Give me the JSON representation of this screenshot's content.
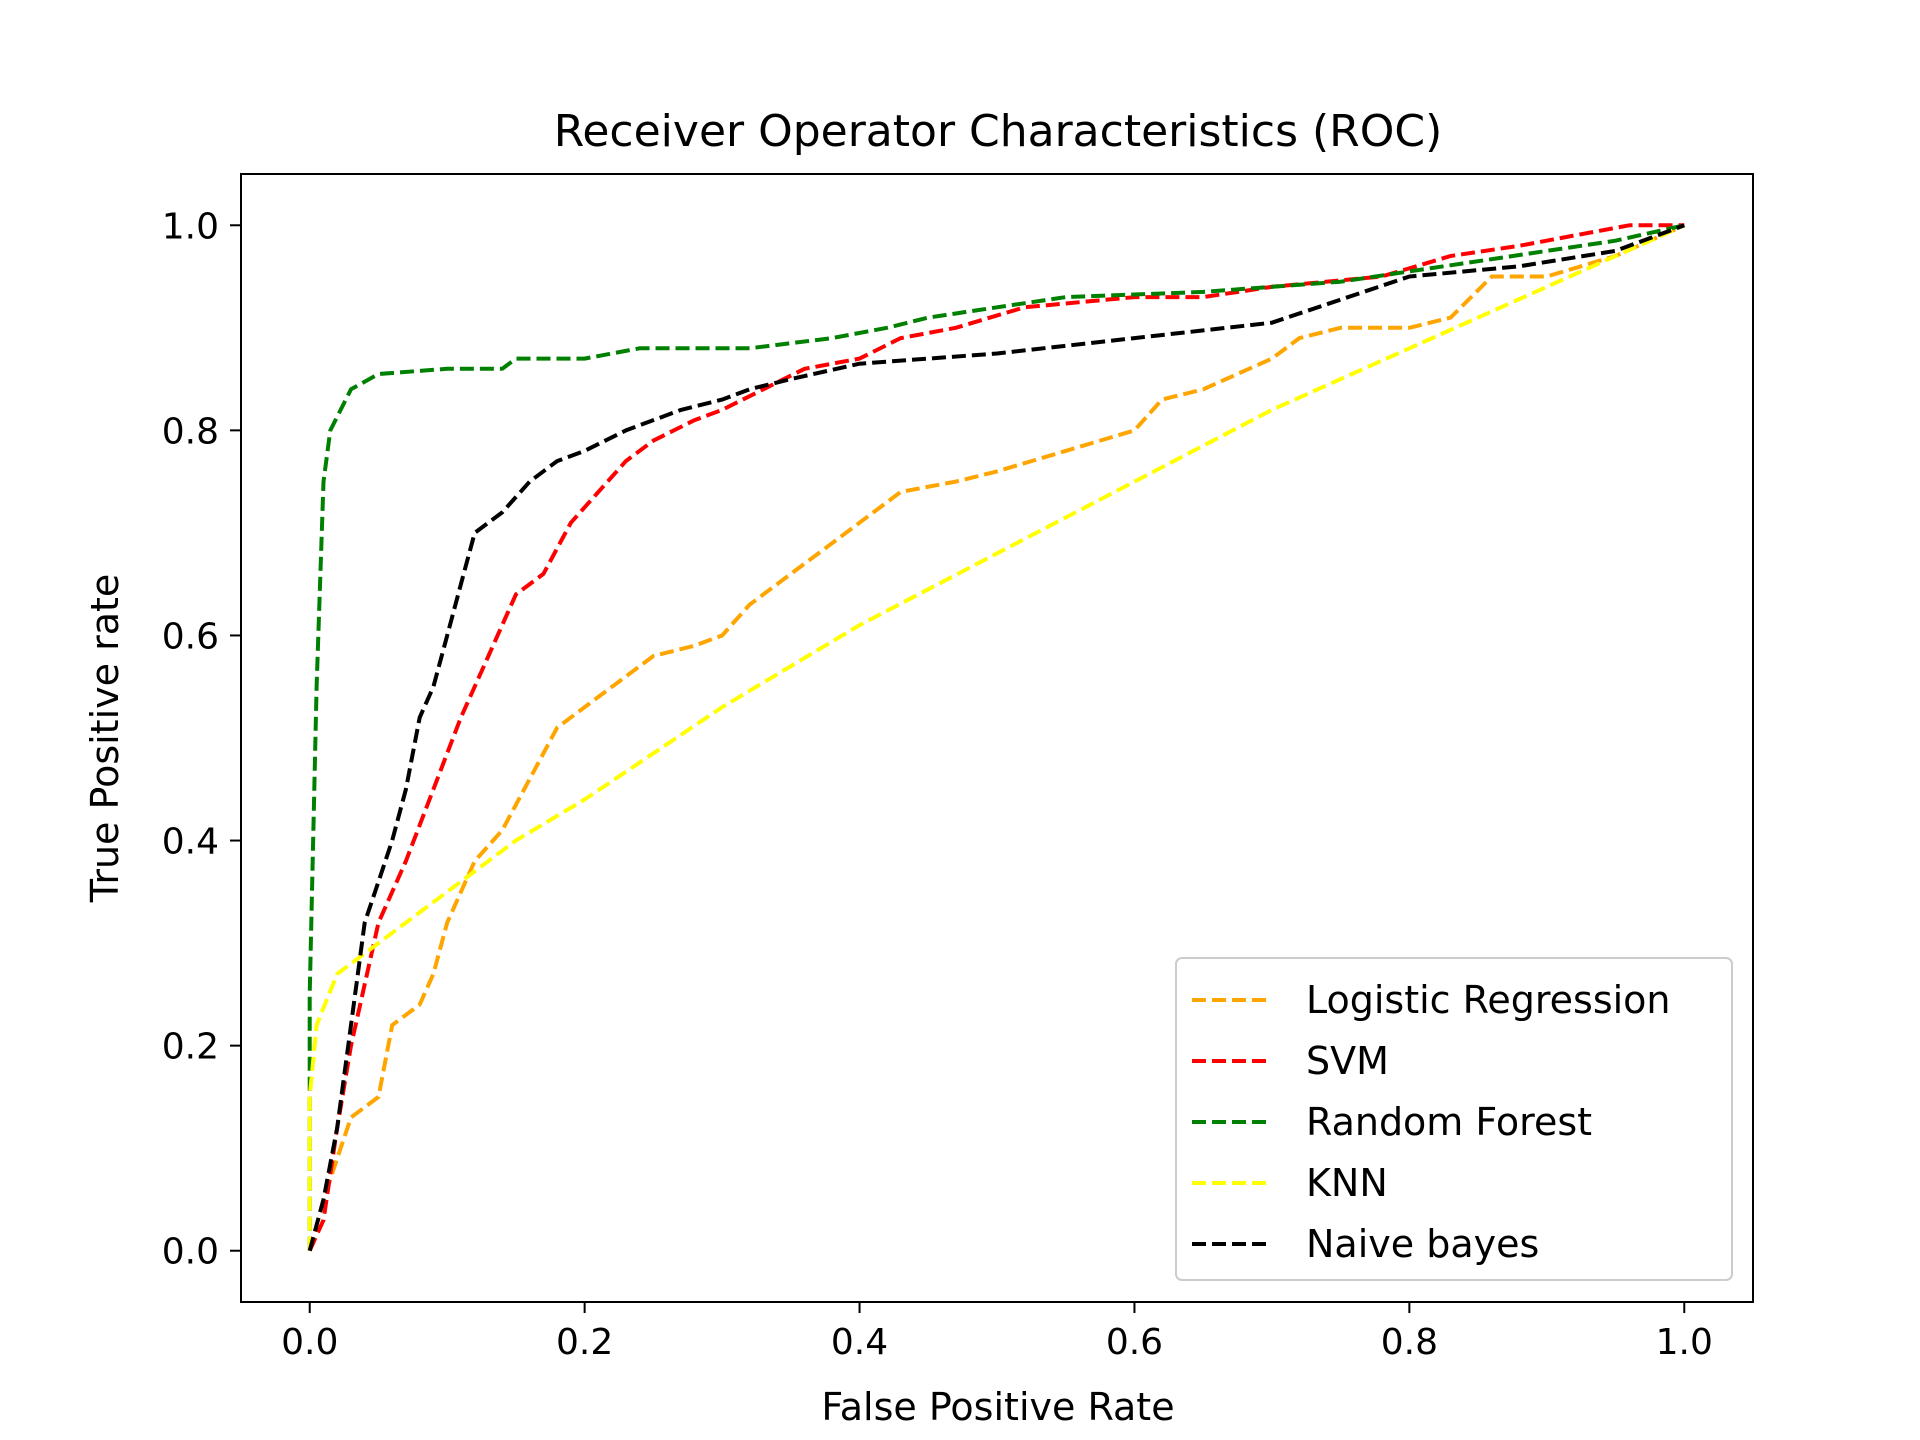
{
  "chart_data": {
    "type": "line",
    "title": "Receiver Operator Characteristics (ROC)",
    "xlabel": "False Positive Rate",
    "ylabel": "True Positive rate",
    "xlim": [
      -0.05,
      1.05
    ],
    "ylim": [
      -0.05,
      1.05
    ],
    "xticks": [
      0.0,
      0.2,
      0.4,
      0.6,
      0.8,
      1.0
    ],
    "yticks": [
      0.0,
      0.2,
      0.4,
      0.6,
      0.8,
      1.0
    ],
    "xtick_labels": [
      "0.0",
      "0.2",
      "0.4",
      "0.6",
      "0.8",
      "1.0"
    ],
    "ytick_labels": [
      "0.0",
      "0.2",
      "0.4",
      "0.6",
      "0.8",
      "1.0"
    ],
    "grid": false,
    "legend_position": "bottom-right",
    "line_style": "dashed",
    "series": [
      {
        "name": "Logistic Regression",
        "color": "#ffa500",
        "points": [
          [
            0,
            0
          ],
          [
            0.01,
            0.05
          ],
          [
            0.02,
            0.09
          ],
          [
            0.03,
            0.13
          ],
          [
            0.05,
            0.15
          ],
          [
            0.06,
            0.22
          ],
          [
            0.08,
            0.24
          ],
          [
            0.09,
            0.27
          ],
          [
            0.1,
            0.32
          ],
          [
            0.12,
            0.38
          ],
          [
            0.14,
            0.41
          ],
          [
            0.16,
            0.46
          ],
          [
            0.18,
            0.51
          ],
          [
            0.2,
            0.53
          ],
          [
            0.22,
            0.55
          ],
          [
            0.25,
            0.58
          ],
          [
            0.28,
            0.59
          ],
          [
            0.3,
            0.6
          ],
          [
            0.32,
            0.63
          ],
          [
            0.35,
            0.66
          ],
          [
            0.38,
            0.69
          ],
          [
            0.4,
            0.71
          ],
          [
            0.43,
            0.74
          ],
          [
            0.47,
            0.75
          ],
          [
            0.5,
            0.76
          ],
          [
            0.55,
            0.78
          ],
          [
            0.6,
            0.8
          ],
          [
            0.62,
            0.83
          ],
          [
            0.65,
            0.84
          ],
          [
            0.7,
            0.87
          ],
          [
            0.72,
            0.89
          ],
          [
            0.75,
            0.9
          ],
          [
            0.8,
            0.9
          ],
          [
            0.83,
            0.91
          ],
          [
            0.86,
            0.95
          ],
          [
            0.9,
            0.95
          ],
          [
            0.95,
            0.97
          ],
          [
            1,
            1
          ]
        ]
      },
      {
        "name": "SVM",
        "color": "#ff0000",
        "points": [
          [
            0,
            0
          ],
          [
            0.01,
            0.03
          ],
          [
            0.02,
            0.12
          ],
          [
            0.03,
            0.2
          ],
          [
            0.05,
            0.32
          ],
          [
            0.07,
            0.38
          ],
          [
            0.09,
            0.45
          ],
          [
            0.11,
            0.52
          ],
          [
            0.13,
            0.58
          ],
          [
            0.15,
            0.64
          ],
          [
            0.17,
            0.66
          ],
          [
            0.19,
            0.71
          ],
          [
            0.21,
            0.74
          ],
          [
            0.23,
            0.77
          ],
          [
            0.25,
            0.79
          ],
          [
            0.28,
            0.81
          ],
          [
            0.3,
            0.82
          ],
          [
            0.33,
            0.84
          ],
          [
            0.36,
            0.86
          ],
          [
            0.4,
            0.87
          ],
          [
            0.43,
            0.89
          ],
          [
            0.47,
            0.9
          ],
          [
            0.52,
            0.92
          ],
          [
            0.6,
            0.93
          ],
          [
            0.65,
            0.93
          ],
          [
            0.7,
            0.94
          ],
          [
            0.78,
            0.95
          ],
          [
            0.83,
            0.97
          ],
          [
            0.88,
            0.98
          ],
          [
            0.92,
            0.99
          ],
          [
            0.96,
            1
          ],
          [
            1,
            1
          ]
        ]
      },
      {
        "name": "Random Forest",
        "color": "#008000",
        "points": [
          [
            0,
            0
          ],
          [
            0.0,
            0.25
          ],
          [
            0.005,
            0.55
          ],
          [
            0.01,
            0.75
          ],
          [
            0.015,
            0.8
          ],
          [
            0.03,
            0.84
          ],
          [
            0.05,
            0.855
          ],
          [
            0.1,
            0.86
          ],
          [
            0.14,
            0.86
          ],
          [
            0.15,
            0.87
          ],
          [
            0.2,
            0.87
          ],
          [
            0.24,
            0.88
          ],
          [
            0.32,
            0.88
          ],
          [
            0.38,
            0.89
          ],
          [
            0.42,
            0.9
          ],
          [
            0.45,
            0.91
          ],
          [
            0.5,
            0.92
          ],
          [
            0.55,
            0.93
          ],
          [
            0.65,
            0.935
          ],
          [
            0.75,
            0.945
          ],
          [
            0.8,
            0.955
          ],
          [
            0.85,
            0.965
          ],
          [
            0.9,
            0.975
          ],
          [
            0.95,
            0.985
          ],
          [
            1,
            1
          ]
        ]
      },
      {
        "name": "KNN",
        "color": "#ffff00",
        "points": [
          [
            0,
            0
          ],
          [
            0.0,
            0.15
          ],
          [
            0.005,
            0.22
          ],
          [
            0.02,
            0.27
          ],
          [
            0.05,
            0.3
          ],
          [
            0.1,
            0.35
          ],
          [
            0.15,
            0.4
          ],
          [
            0.2,
            0.44
          ],
          [
            0.3,
            0.53
          ],
          [
            0.4,
            0.61
          ],
          [
            0.5,
            0.68
          ],
          [
            0.6,
            0.75
          ],
          [
            0.7,
            0.82
          ],
          [
            0.8,
            0.88
          ],
          [
            0.9,
            0.94
          ],
          [
            1,
            1
          ]
        ]
      },
      {
        "name": "Naive bayes",
        "color": "#000000",
        "points": [
          [
            0,
            0
          ],
          [
            0.01,
            0.05
          ],
          [
            0.02,
            0.12
          ],
          [
            0.03,
            0.22
          ],
          [
            0.04,
            0.32
          ],
          [
            0.05,
            0.36
          ],
          [
            0.06,
            0.4
          ],
          [
            0.07,
            0.45
          ],
          [
            0.08,
            0.52
          ],
          [
            0.09,
            0.55
          ],
          [
            0.1,
            0.6
          ],
          [
            0.11,
            0.65
          ],
          [
            0.12,
            0.7
          ],
          [
            0.14,
            0.72
          ],
          [
            0.16,
            0.75
          ],
          [
            0.18,
            0.77
          ],
          [
            0.2,
            0.78
          ],
          [
            0.23,
            0.8
          ],
          [
            0.27,
            0.82
          ],
          [
            0.3,
            0.83
          ],
          [
            0.32,
            0.84
          ],
          [
            0.35,
            0.85
          ],
          [
            0.4,
            0.865
          ],
          [
            0.5,
            0.875
          ],
          [
            0.6,
            0.89
          ],
          [
            0.7,
            0.905
          ],
          [
            0.8,
            0.95
          ],
          [
            0.88,
            0.96
          ],
          [
            0.95,
            0.975
          ],
          [
            1,
            1
          ]
        ]
      }
    ]
  }
}
